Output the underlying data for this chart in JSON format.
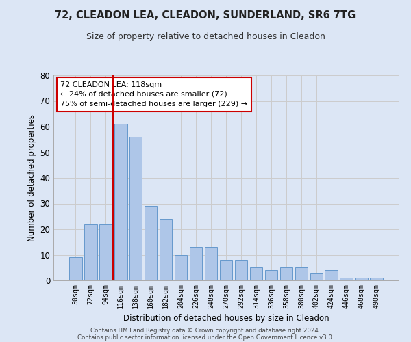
{
  "title1": "72, CLEADON LEA, CLEADON, SUNDERLAND, SR6 7TG",
  "title2": "Size of property relative to detached houses in Cleadon",
  "xlabel": "Distribution of detached houses by size in Cleadon",
  "ylabel": "Number of detached properties",
  "categories": [
    "50sqm",
    "72sqm",
    "94sqm",
    "116sqm",
    "138sqm",
    "160sqm",
    "182sqm",
    "204sqm",
    "226sqm",
    "248sqm",
    "270sqm",
    "292sqm",
    "314sqm",
    "336sqm",
    "358sqm",
    "380sqm",
    "402sqm",
    "424sqm",
    "446sqm",
    "468sqm",
    "490sqm"
  ],
  "values": [
    9,
    22,
    22,
    61,
    56,
    29,
    24,
    10,
    13,
    13,
    8,
    8,
    5,
    4,
    5,
    5,
    3,
    4,
    1,
    1,
    1
  ],
  "bar_color": "#aec6e8",
  "bar_edge_color": "#6699cc",
  "vline_x_index": 3,
  "vline_color": "#cc0000",
  "annotation_line1": "72 CLEADON LEA: 118sqm",
  "annotation_line2": "← 24% of detached houses are smaller (72)",
  "annotation_line3": "75% of semi-detached houses are larger (229) →",
  "annotation_box_color": "#cc0000",
  "ylim": [
    0,
    80
  ],
  "yticks": [
    0,
    10,
    20,
    30,
    40,
    50,
    60,
    70,
    80
  ],
  "grid_color": "#cccccc",
  "bg_color": "#dce6f5",
  "footnote1": "Contains HM Land Registry data © Crown copyright and database right 2024.",
  "footnote2": "Contains public sector information licensed under the Open Government Licence v3.0."
}
